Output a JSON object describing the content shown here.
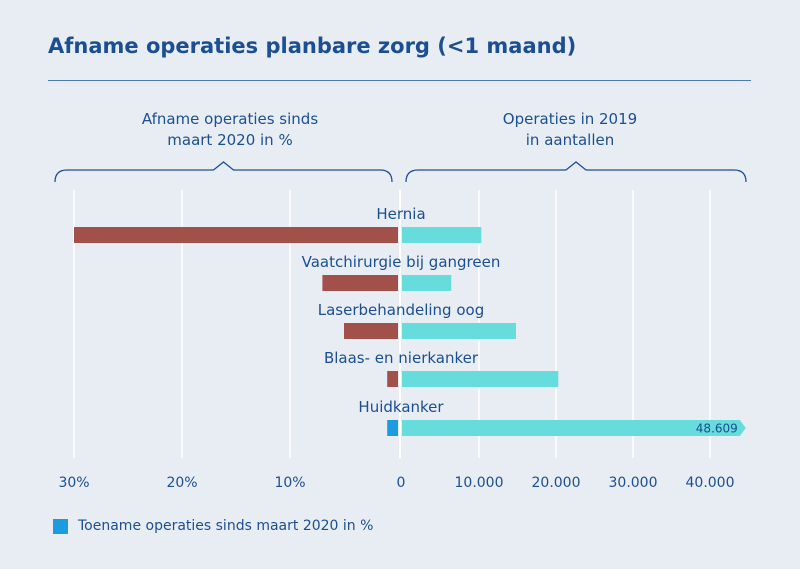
{
  "title": "Afname operaties planbare zorg (<1 maand)",
  "left_header": [
    "Afname operaties sinds",
    "maart 2020 in %"
  ],
  "right_header": [
    "Operaties in 2019",
    "in aantallen"
  ],
  "colors": {
    "decrease": "#a3504b",
    "increase": "#1b9be0",
    "count": "#66dcdc",
    "text": "#1b4f91",
    "axis": "#ffffff"
  },
  "chart_data": {
    "type": "bar",
    "categories": [
      "Hernia",
      "Vaatchirurgie bij gangreen",
      "Laserbehandeling oog",
      "Blaas- en nierkanker",
      "Huidkanker"
    ],
    "series": [
      {
        "name": "Afname operaties sinds maart 2020 in %",
        "values": [
          -30,
          -7,
          -5,
          -1,
          1
        ]
      },
      {
        "name": "Operaties in 2019 in aantallen",
        "values": [
          10300,
          6400,
          14800,
          20300,
          48609
        ]
      }
    ],
    "left_axis": {
      "ticks": [
        30,
        20,
        10,
        0
      ],
      "tick_labels": [
        "30%",
        "20%",
        "10%",
        "0"
      ],
      "range": [
        30,
        0
      ]
    },
    "right_axis": {
      "ticks": [
        10000,
        20000,
        30000,
        40000
      ],
      "tick_labels": [
        "10.000",
        "20.000",
        "30.000",
        "40.000"
      ],
      "range": [
        0,
        44000
      ]
    },
    "annotations": [
      {
        "category": "Huidkanker",
        "text": "48.609",
        "note": "bar truncated with arrow"
      }
    ],
    "grid": true
  },
  "legend": {
    "label": "Toename operaties sinds maart 2020 in %"
  }
}
